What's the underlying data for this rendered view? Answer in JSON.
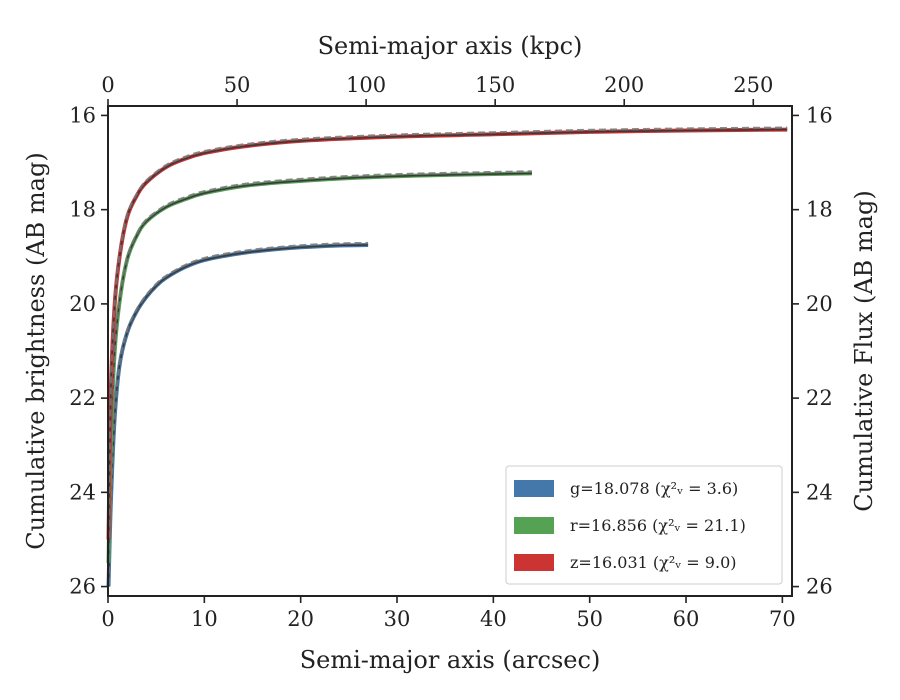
{
  "chart_data": {
    "type": "line",
    "xlabel_bottom": "Semi-major axis (arcsec)",
    "xlabel_top": "Semi-major axis (kpc)",
    "ylabel_left": "Cumulative brightness (AB mag)",
    "ylabel_right": "Cumulative Flux (AB mag)",
    "xlim": [
      0,
      71
    ],
    "xlim_top": [
      0,
      265
    ],
    "ylim": [
      26.2,
      15.8
    ],
    "y_inverted": true,
    "xticks_bottom": [
      0,
      10,
      20,
      30,
      40,
      50,
      60,
      70
    ],
    "xticks_top": [
      0,
      50,
      100,
      150,
      200,
      250
    ],
    "yticks": [
      16,
      18,
      20,
      22,
      24,
      26
    ],
    "legend_position": "lower-right",
    "series": [
      {
        "name": "g",
        "legend_label": "g=18.078 (χ²ᵥ = 3.6)",
        "color": "#4477aa",
        "x": [
          0.05,
          0.3,
          0.7,
          1.2,
          2,
          3,
          4,
          5,
          6,
          8,
          10,
          13,
          16,
          20,
          24,
          27
        ],
        "y": [
          26.0,
          24.2,
          22.4,
          21.3,
          20.6,
          20.15,
          19.85,
          19.62,
          19.45,
          19.22,
          19.07,
          18.95,
          18.87,
          18.8,
          18.76,
          18.75
        ]
      },
      {
        "name": "r",
        "legend_label": "r=16.856 (χ²ᵥ = 21.1)",
        "color": "#55a255",
        "x": [
          0.05,
          0.3,
          0.7,
          1.2,
          2,
          3,
          4,
          6,
          8,
          10,
          14,
          18,
          24,
          30,
          36,
          44
        ],
        "y": [
          25.5,
          22.9,
          21.0,
          19.95,
          19.05,
          18.55,
          18.25,
          17.95,
          17.78,
          17.65,
          17.5,
          17.42,
          17.34,
          17.29,
          17.26,
          17.23
        ]
      },
      {
        "name": "z",
        "legend_label": "z=16.031 (χ²ᵥ = 9.0)",
        "color": "#cc3333",
        "x": [
          0.05,
          0.3,
          0.7,
          1.2,
          2,
          3,
          4,
          6,
          8,
          10,
          14,
          20,
          30,
          40,
          50,
          60,
          70.5
        ],
        "y": [
          25.0,
          21.8,
          20.0,
          19.0,
          18.15,
          17.7,
          17.42,
          17.1,
          16.92,
          16.8,
          16.66,
          16.54,
          16.45,
          16.4,
          16.35,
          16.32,
          16.3
        ]
      }
    ]
  }
}
